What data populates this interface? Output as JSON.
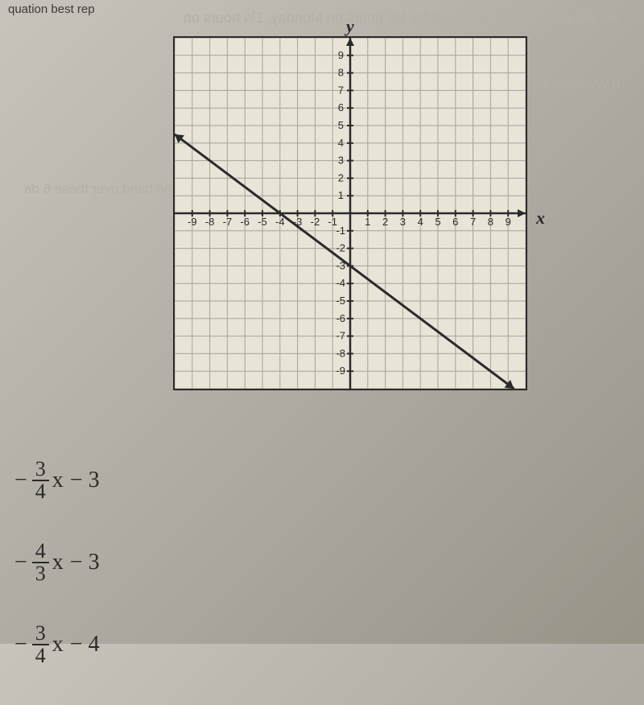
{
  "bleed_text": {
    "line1": "res will practice with his band for 1½ hours on Monday, 1¾ hours on",
    "line2": "n Wednesday. Next week Andres will practice with his band for the sa",
    "line3": "rs on Monday, Tuesday, and Wednesday",
    "line4": "al number of hours Andres will practice with the band over these 6 da"
  },
  "top_label": "quation best rep",
  "graph": {
    "type": "line",
    "xlim": [
      -9,
      9
    ],
    "ylim": [
      -9,
      9
    ],
    "xtick_step": 1,
    "ytick_step": 1,
    "x_labels_neg": [
      "-9",
      "-8",
      "-7",
      "-6",
      "-5",
      "-4",
      "-3",
      "-2",
      "-1"
    ],
    "x_labels_pos": [
      "1",
      "2",
      "3",
      "4",
      "5",
      "6",
      "7",
      "8",
      "9"
    ],
    "y_labels_pos": [
      "1",
      "2",
      "3",
      "4",
      "5",
      "6",
      "7",
      "8",
      "9"
    ],
    "y_labels_neg": [
      "-1",
      "-2",
      "-3",
      "-4",
      "-5",
      "-6",
      "-7",
      "-8",
      "-9"
    ],
    "line_points": [
      [
        -9,
        3.75
      ],
      [
        9,
        -9.75
      ]
    ],
    "line_color": "#2a2a2a",
    "line_width": 3,
    "grid_color": "#a8a298",
    "axis_color": "#2a2a2a",
    "background_color": "#e8e4d8",
    "label_fontsize": 13,
    "x_axis_label": "x",
    "y_axis_label": "y"
  },
  "answers": {
    "option1": {
      "neg": "−",
      "num": "3",
      "den": "4",
      "var": "x",
      "const": "− 3"
    },
    "option2": {
      "neg": "−",
      "num": "4",
      "den": "3",
      "var": "x",
      "const": "− 3"
    },
    "option3": {
      "neg": "−",
      "num": "3",
      "den": "4",
      "var": "x",
      "const": "− 4"
    }
  }
}
